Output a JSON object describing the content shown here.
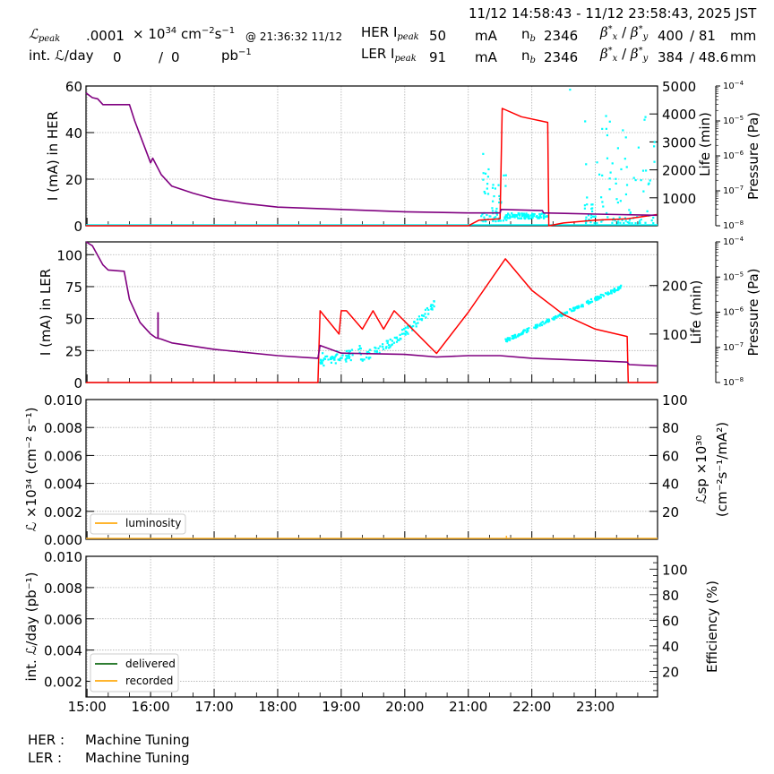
{
  "header": {
    "time_range": "11/12 14:58:43 - 11/12 23:58:43, 2025 JST",
    "lpeak_label": "ℒ",
    "lpeak_sub": "peak",
    "lpeak_value": ".0001",
    "lpeak_unit_prefix": "× 10",
    "lpeak_unit_exp": "34",
    "lpeak_unit": "cm",
    "lpeak_unit_cm_exp": "−2",
    "lpeak_unit_s": "s",
    "lpeak_unit_s_exp": "−1",
    "lpeak_time": "@ 21:36:32 11/12",
    "intl_label": "int. ℒ/day",
    "intl_delivered": "0",
    "intl_sep": "/",
    "intl_recorded": "0",
    "intl_unit": "pb",
    "intl_unit_exp": "−1",
    "her": {
      "label": "HER I",
      "sub": "peak",
      "value": "50",
      "unit": "mA",
      "nb_label": "n",
      "nb_sub": "b",
      "nb_value": "2346",
      "beta_label": "β*x / β*y",
      "beta_x": "400",
      "beta_y": "/ 81",
      "beta_unit": "mm"
    },
    "ler": {
      "label": "LER I",
      "sub": "peak",
      "value": "91",
      "unit": "mA",
      "nb_label": "n",
      "nb_sub": "b",
      "nb_value": "2346",
      "beta_label": "β*x / β*y",
      "beta_x": "384",
      "beta_y": "/ 48.6",
      "beta_unit": "mm"
    }
  },
  "footer": {
    "her_label": "HER :",
    "her_status": "Machine Tuning",
    "ler_label": "LER :",
    "ler_status": "Machine Tuning"
  },
  "colors": {
    "current": "#800080",
    "life": "#ff0000",
    "pressure": "#00ffff",
    "luminosity": "#ffb52e",
    "delivered": "#2e7d32",
    "recorded": "#ffb52e",
    "grid": "#b0b0b0"
  },
  "chart_data": [
    {
      "type": "line",
      "title": "HER",
      "xlabel": "",
      "ylabel": "I (mA) in HER",
      "ylabel_right": "Life (min)",
      "ylabel_right2": "Pressure (Pa)",
      "x_ticks": [
        "15:00",
        "16:00",
        "17:00",
        "18:00",
        "19:00",
        "20:00",
        "21:00",
        "22:00",
        "23:00"
      ],
      "ylim": [
        0,
        60
      ],
      "y_ticks": [
        0,
        20,
        40,
        60
      ],
      "y2lim": [
        0,
        5000
      ],
      "y2_ticks": [
        1000,
        2000,
        3000,
        4000,
        5000
      ],
      "y3_ticks": [
        "10^-8",
        "10^-7",
        "10^-6",
        "10^-5",
        "10^-4"
      ],
      "grid": true,
      "series": [
        {
          "name": "current",
          "axis": "left",
          "x": [
            "14:59",
            "15:05",
            "15:10",
            "15:15",
            "15:20",
            "15:40",
            "15:45",
            "15:55",
            "16:00",
            "16:02",
            "16:10",
            "16:20",
            "16:40",
            "17:00",
            "17:30",
            "18:00",
            "19:00",
            "20:00",
            "21:00",
            "21:30",
            "21:31",
            "22:10",
            "22:11",
            "23:00",
            "23:58"
          ],
          "y": [
            57,
            55,
            54.5,
            52,
            52,
            52,
            45,
            33,
            27,
            29,
            22,
            17,
            14,
            11.5,
            9.5,
            8,
            7,
            6,
            5.5,
            5.5,
            7,
            6.5,
            5.5,
            5,
            4.5
          ]
        },
        {
          "name": "life",
          "axis": "right",
          "x": [
            "14:59",
            "21:00",
            "21:10",
            "21:30",
            "21:32",
            "21:50",
            "22:15",
            "22:16",
            "22:30",
            "23:00",
            "23:30",
            "23:58"
          ],
          "y": [
            0,
            0,
            200,
            250,
            4200,
            3900,
            3700,
            0,
            100,
            200,
            250,
            400
          ]
        },
        {
          "name": "pressure",
          "axis": "right2",
          "note": "scattered points 21:00–21:40 and 22:50–23:58, ~1e-8 to 1e-5 Pa"
        }
      ]
    },
    {
      "type": "line",
      "title": "LER",
      "ylabel": "I (mA) in LER",
      "ylabel_right": "Life (min)",
      "ylabel_right2": "Pressure (Pa)",
      "x_ticks": [
        "15:00",
        "16:00",
        "17:00",
        "18:00",
        "19:00",
        "20:00",
        "21:00",
        "22:00",
        "23:00"
      ],
      "ylim": [
        0,
        110
      ],
      "y_ticks": [
        0,
        25,
        50,
        75,
        100
      ],
      "y2_ticks": [
        100,
        200
      ],
      "y3_ticks": [
        "10^-8",
        "10^-7",
        "10^-6",
        "10^-5",
        "10^-4"
      ],
      "grid": true,
      "series": [
        {
          "name": "current",
          "axis": "left",
          "x": [
            "14:59",
            "15:05",
            "15:15",
            "15:20",
            "15:35",
            "15:40",
            "15:50",
            "16:00",
            "16:05",
            "16:10",
            "16:20",
            "17:00",
            "18:00",
            "18:38",
            "18:40",
            "19:00",
            "20:00",
            "20:30",
            "21:00",
            "21:30",
            "22:00",
            "23:00",
            "23:30",
            "23:32",
            "23:58"
          ],
          "y": [
            110,
            107,
            92,
            88,
            87,
            65,
            47,
            38,
            35,
            34,
            31,
            26,
            21,
            19,
            29,
            23,
            22,
            20,
            21,
            21,
            19,
            17,
            16,
            14,
            13
          ]
        },
        {
          "name": "life",
          "axis": "right",
          "x": [
            "14:59",
            "18:38",
            "18:40",
            "18:58",
            "19:00",
            "19:05",
            "19:20",
            "19:30",
            "19:40",
            "19:50",
            "20:30",
            "21:00",
            "21:35",
            "22:00",
            "22:30",
            "23:00",
            "23:30",
            "23:31",
            "23:58"
          ],
          "y": [
            0,
            0,
            148,
            100,
            148,
            148,
            110,
            148,
            110,
            148,
            60,
            145,
            255,
            190,
            140,
            110,
            95,
            0,
            0
          ]
        },
        {
          "name": "pressure",
          "axis": "right2",
          "note": "rising point cloud 18:40–20:30 and 21:35–23:25"
        }
      ]
    },
    {
      "type": "line",
      "title": "Luminosity",
      "ylabel": "ℒ ×10^34 (cm^-2 s^-1)",
      "ylabel_right": "ℒsp ×10^30 (cm^-2 s^-1 / mA^2)",
      "ylim": [
        0,
        0.01
      ],
      "y_ticks": [
        0.0,
        0.002,
        0.004,
        0.006,
        0.008,
        0.01
      ],
      "y2lim": [
        0,
        100
      ],
      "y2_ticks": [
        20,
        40,
        60,
        80,
        100
      ],
      "legend": [
        "luminosity"
      ],
      "legend_position": "lower left",
      "grid": true,
      "series": [
        {
          "name": "luminosity",
          "values": [
            0,
            0,
            0,
            0,
            0,
            0,
            0.0001,
            0,
            0
          ]
        }
      ]
    },
    {
      "type": "line",
      "title": "Integrated luminosity",
      "ylabel": "int. ℒ/day (pb^-1)",
      "ylabel_right": "Efficiency (%)",
      "xlabel": "",
      "ylim": [
        0.001,
        0.01
      ],
      "y_ticks": [
        0.002,
        0.004,
        0.006,
        0.008,
        0.01
      ],
      "y2_ticks": [
        20,
        40,
        60,
        80,
        100
      ],
      "x_ticks": [
        "15:00",
        "16:00",
        "17:00",
        "18:00",
        "19:00",
        "20:00",
        "21:00",
        "22:00",
        "23:00"
      ],
      "legend": [
        "delivered",
        "recorded"
      ],
      "legend_position": "lower left",
      "grid": true,
      "series": [
        {
          "name": "delivered",
          "values": []
        },
        {
          "name": "recorded",
          "values": []
        }
      ]
    }
  ]
}
